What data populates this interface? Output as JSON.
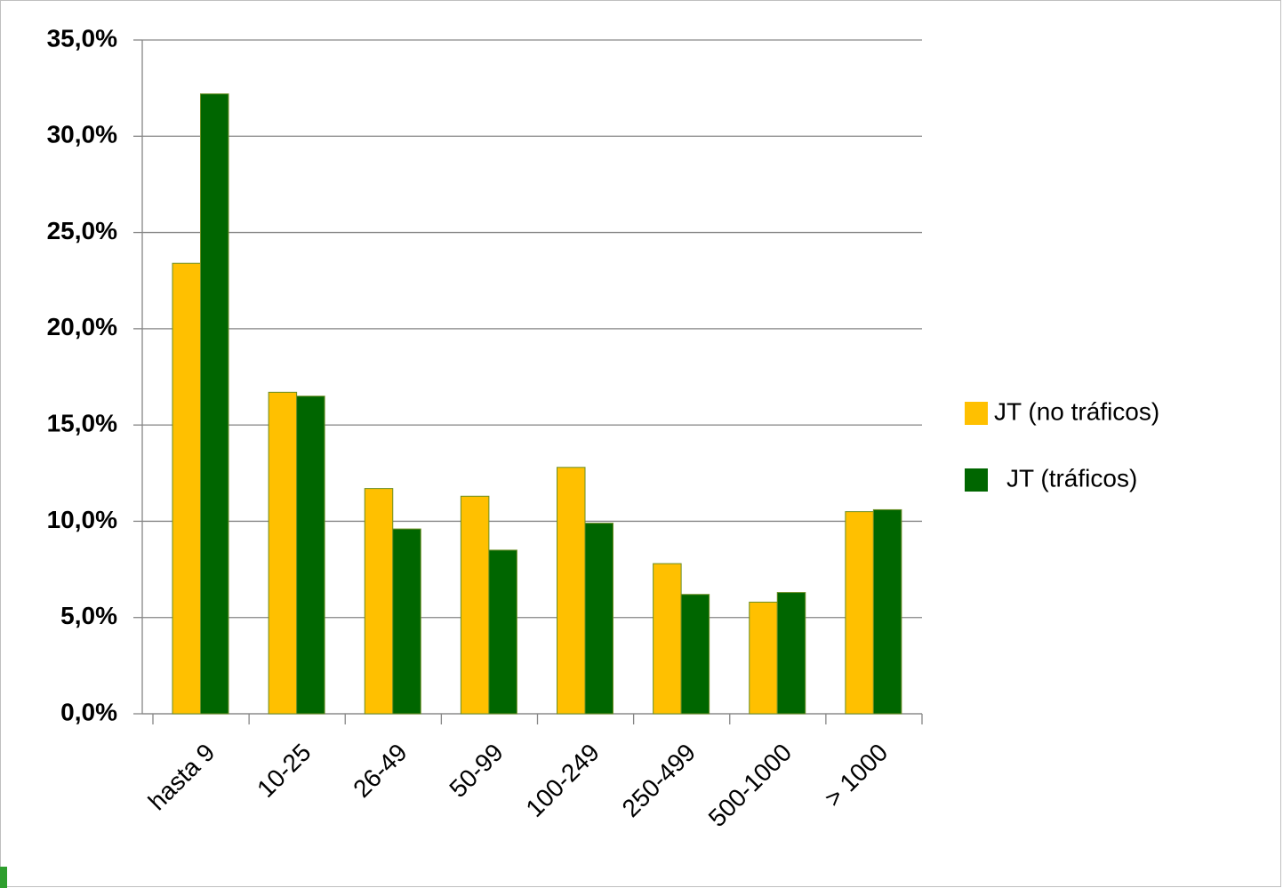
{
  "chart_data": {
    "type": "bar",
    "categories": [
      "hasta 9",
      "10-25",
      "26-49",
      "50-99",
      "100-249",
      "250-499",
      "500-1000",
      "> 1000"
    ],
    "series": [
      {
        "name": "JT (no tráficos)",
        "color": "#ffc000",
        "values": [
          23.4,
          16.7,
          11.7,
          11.3,
          12.8,
          7.8,
          5.8,
          10.5
        ]
      },
      {
        "name": "JT (tráficos)",
        "color": "#006600",
        "values": [
          32.2,
          16.5,
          9.6,
          8.5,
          9.9,
          6.2,
          6.3,
          10.6
        ]
      }
    ],
    "ylim": [
      0,
      35
    ],
    "yticks": [
      {
        "value": 0,
        "label": "0,0%"
      },
      {
        "value": 5,
        "label": "5,0%"
      },
      {
        "value": 10,
        "label": "10,0%"
      },
      {
        "value": 15,
        "label": "15,0%"
      },
      {
        "value": 20,
        "label": "20,0%"
      },
      {
        "value": 25,
        "label": "25,0%"
      },
      {
        "value": 30,
        "label": "30,0%"
      },
      {
        "value": 35,
        "label": "35,0%"
      }
    ],
    "grid": true,
    "legend": "right"
  }
}
